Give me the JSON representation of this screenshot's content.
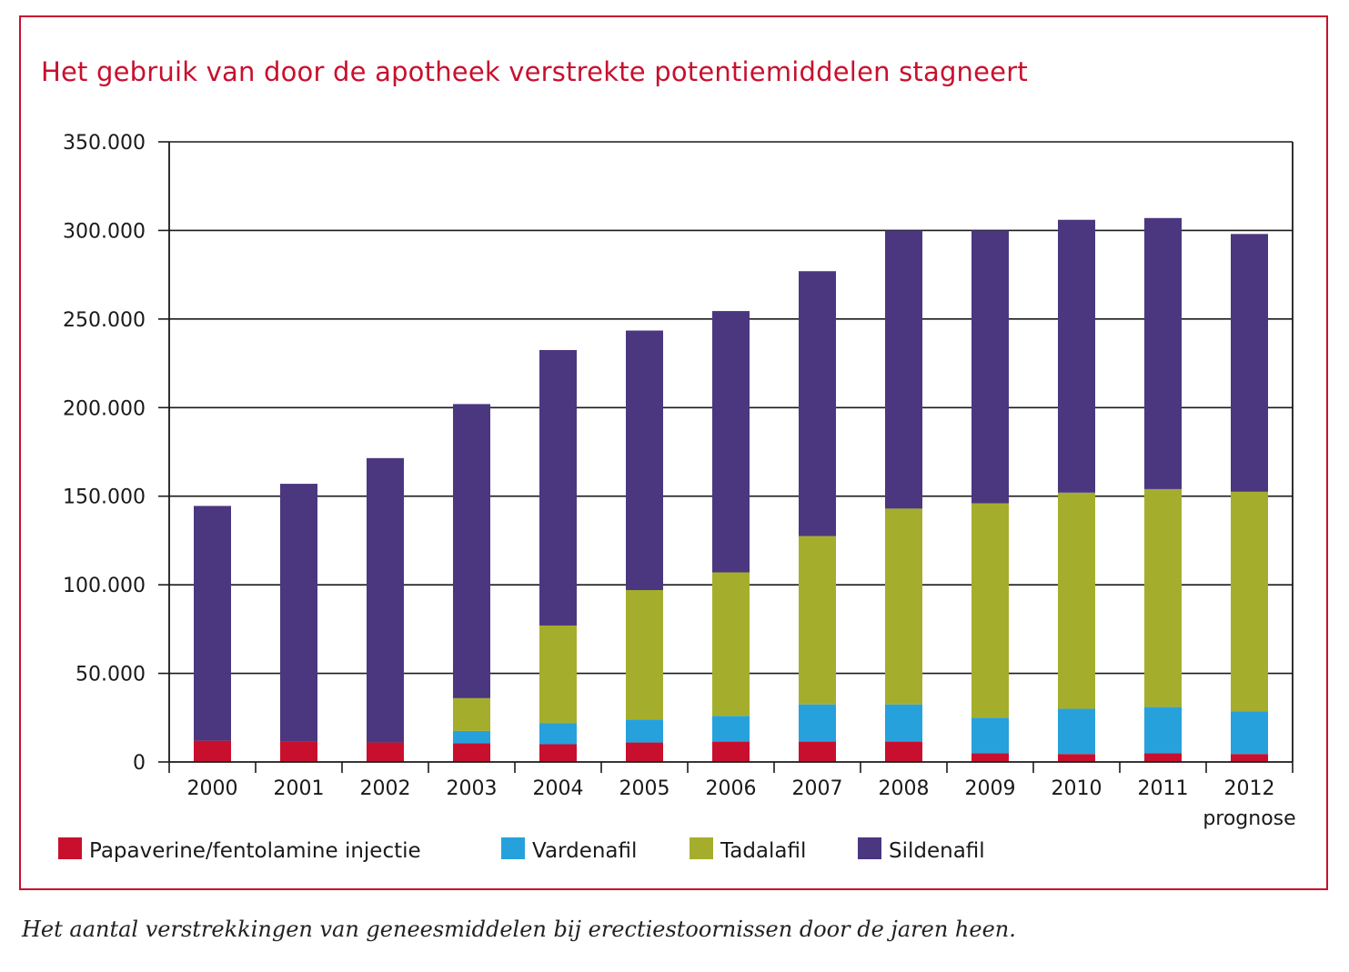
{
  "title": "Het gebruik van door de apotheek verstrekte potentiemiddelen stagneert",
  "caption": "Het aantal verstrekkingen van geneesmiddelen bij erectiestoornissen door de jaren heen.",
  "colors": {
    "frame": "#c8102e",
    "title": "#c8102e",
    "Papaverine/fentolamine injectie": "#c8102e",
    "Vardenafil": "#27a1dc",
    "Tadalafil": "#a5ae2c",
    "Sildenafil": "#4b3780"
  },
  "chart_data": {
    "type": "bar",
    "stacked": true,
    "title": "Het gebruik van door de apotheek verstrekte potentiemiddelen stagneert",
    "xlabel": "",
    "ylabel": "",
    "ylim": [
      0,
      350000
    ],
    "yticks": [
      0,
      50000,
      100000,
      150000,
      200000,
      250000,
      300000,
      350000
    ],
    "ytick_labels": [
      "0",
      "50.000",
      "100.000",
      "150.000",
      "200.000",
      "250.000",
      "300.000",
      "350.000"
    ],
    "grid": true,
    "legend_position": "bottom",
    "categories": [
      "2000",
      "2001",
      "2002",
      "2003",
      "2004",
      "2005",
      "2006",
      "2007",
      "2008",
      "2009",
      "2010",
      "2011",
      "2012"
    ],
    "category_sublabels": [
      "",
      "",
      "",
      "",
      "",
      "",
      "",
      "",
      "",
      "",
      "",
      "",
      "prognose"
    ],
    "series": [
      {
        "name": "Papaverine/fentolamine injectie",
        "values": [
          12000,
          11500,
          11000,
          10500,
          10000,
          11000,
          11500,
          11500,
          11500,
          5000,
          4500,
          5000,
          4500
        ]
      },
      {
        "name": "Vardenafil",
        "values": [
          0,
          0,
          0,
          7000,
          12000,
          13000,
          14500,
          21000,
          21000,
          20000,
          25500,
          26000,
          24000
        ]
      },
      {
        "name": "Tadalafil",
        "values": [
          0,
          0,
          0,
          18500,
          55000,
          73000,
          81000,
          95000,
          110500,
          121000,
          122000,
          123000,
          124000
        ]
      },
      {
        "name": "Sildenafil",
        "values": [
          132500,
          145500,
          160500,
          166000,
          155500,
          146500,
          147500,
          149500,
          157000,
          154000,
          154000,
          153000,
          145500
        ]
      }
    ]
  }
}
